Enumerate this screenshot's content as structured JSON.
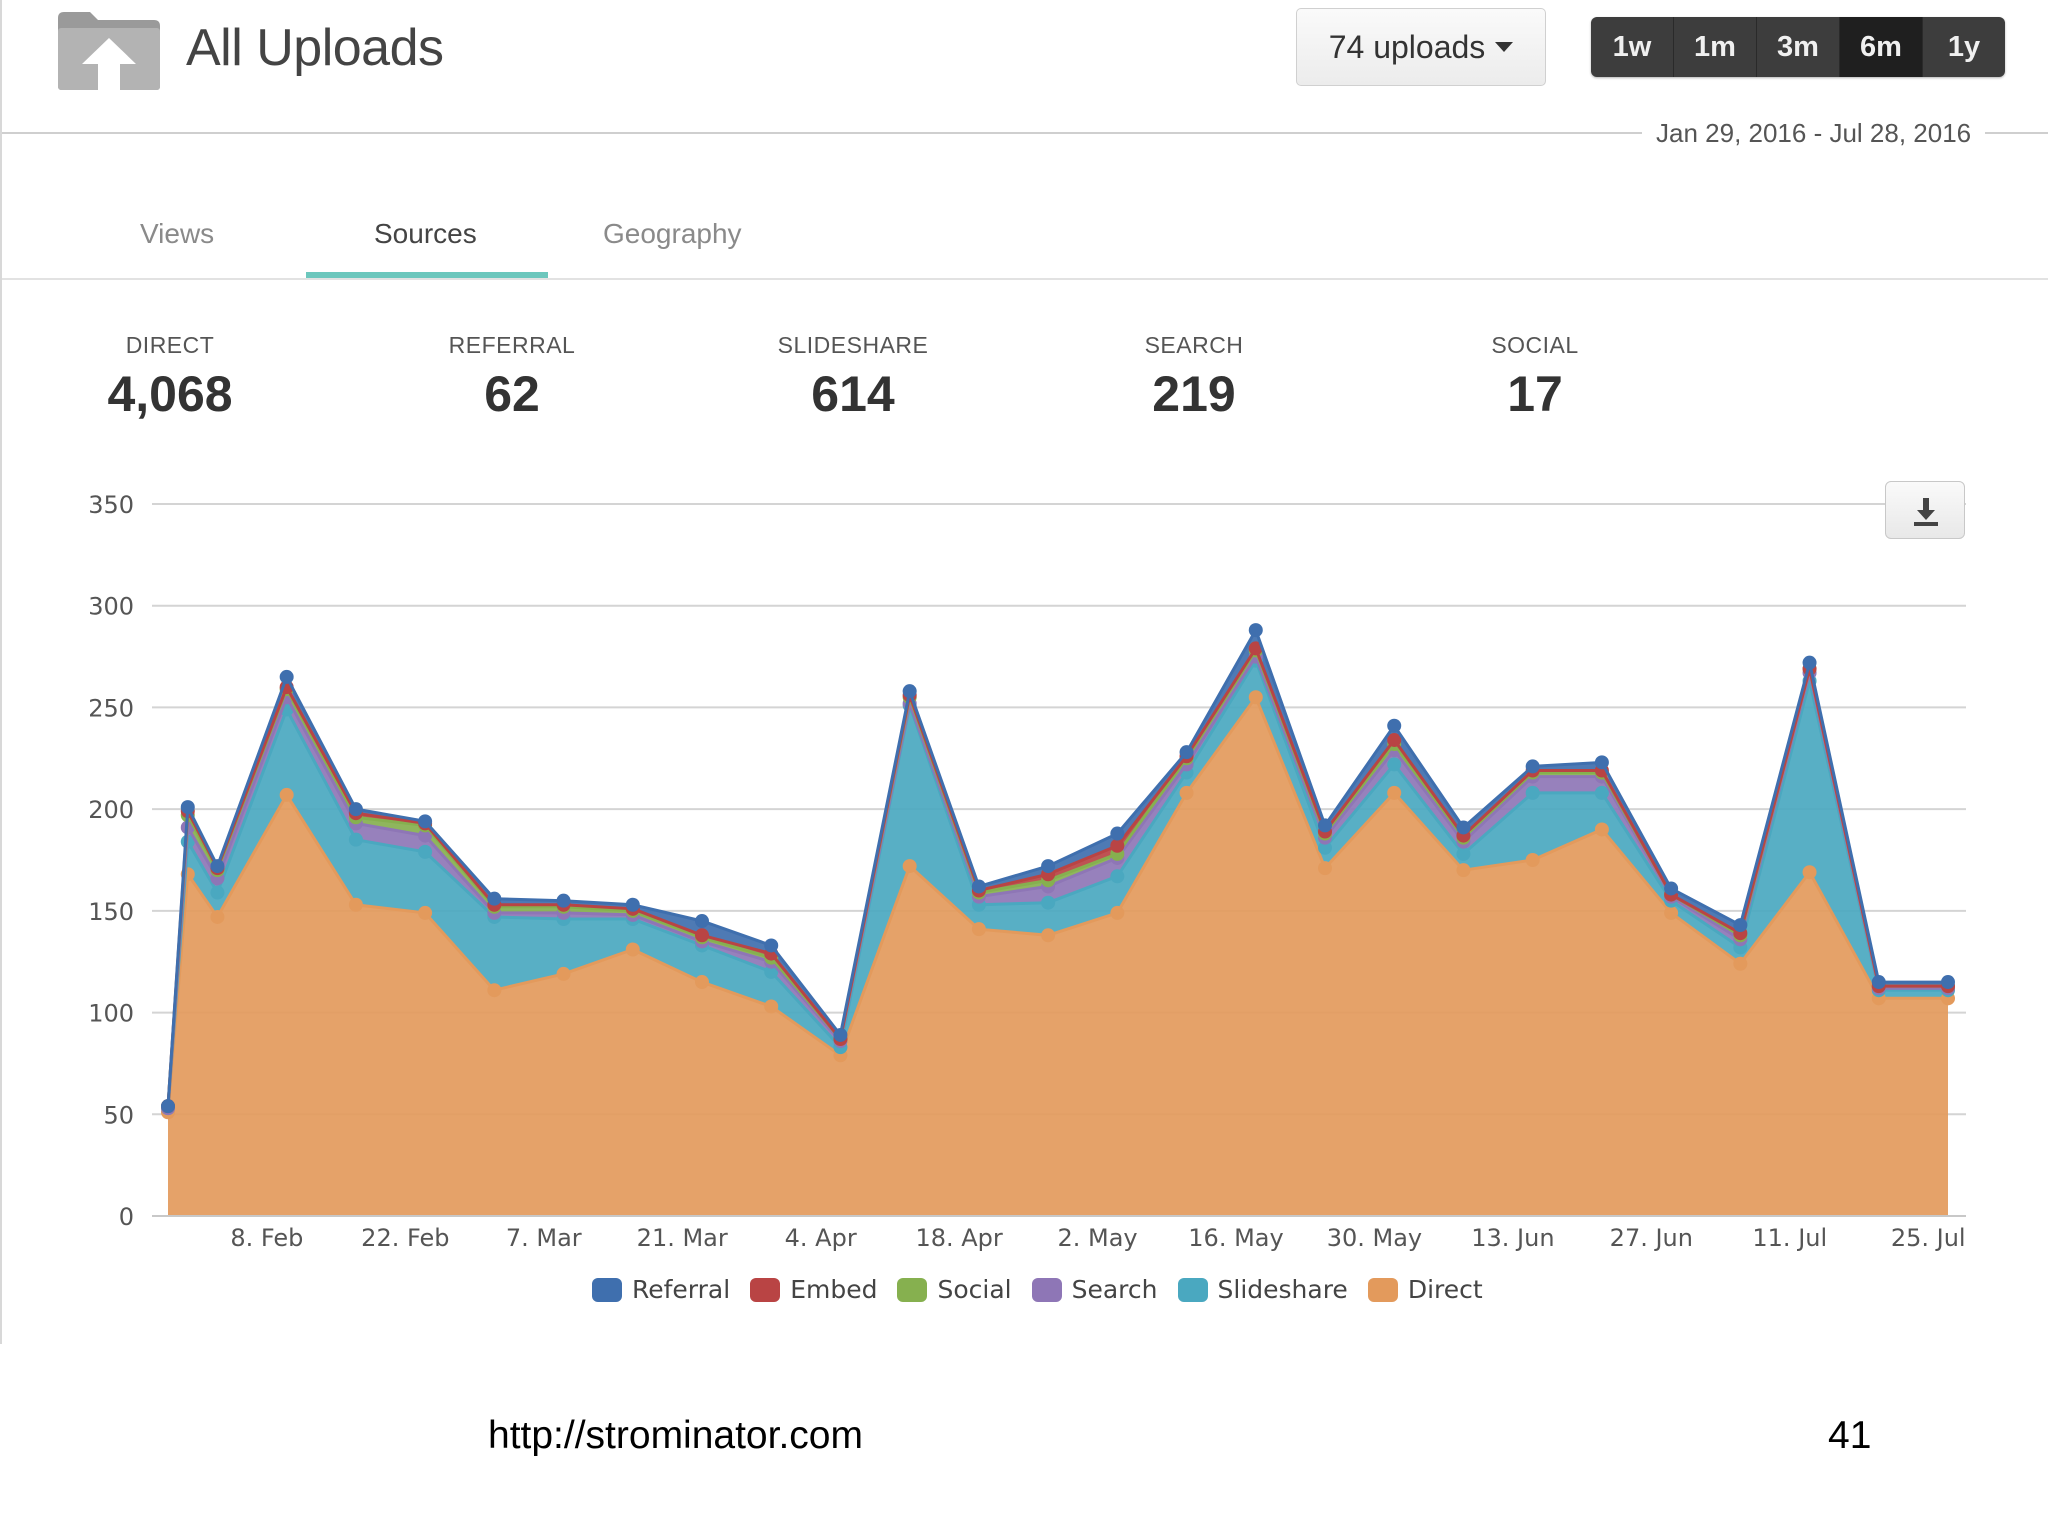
{
  "header": {
    "title": "All Uploads",
    "uploads_dropdown": "74 uploads",
    "range_buttons": [
      "1w",
      "1m",
      "3m",
      "6m",
      "1y"
    ],
    "active_range": "6m",
    "date_range": "Jan 29, 2016 - Jul 28, 2016",
    "folder_icon": "upload-folder-icon"
  },
  "tabs": [
    {
      "label": "Views"
    },
    {
      "label": "Sources"
    },
    {
      "label": "Geography"
    }
  ],
  "active_tab": "Sources",
  "stats": [
    {
      "label": "DIRECT",
      "value": "4,068"
    },
    {
      "label": "REFERRAL",
      "value": "62"
    },
    {
      "label": "SLIDESHARE",
      "value": "614"
    },
    {
      "label": "SEARCH",
      "value": "219"
    },
    {
      "label": "SOCIAL",
      "value": "17"
    }
  ],
  "download_icon": "download-icon",
  "chart_data": {
    "type": "area",
    "stacked": true,
    "title": "",
    "xlabel": "",
    "ylabel": "",
    "ylim": [
      0,
      350
    ],
    "yticks": [
      0,
      50,
      100,
      150,
      200,
      250,
      300,
      350
    ],
    "xticks": [
      "8. Feb",
      "22. Feb",
      "7. Mar",
      "21. Mar",
      "4. Apr",
      "18. Apr",
      "2. May",
      "16. May",
      "30. May",
      "13. Jun",
      "27. Jun",
      "11. Jul",
      "25. Jul"
    ],
    "x": [
      "2016-01-29",
      "2016-01-31",
      "2016-02-03",
      "2016-02-10",
      "2016-02-17",
      "2016-02-24",
      "2016-03-02",
      "2016-03-09",
      "2016-03-16",
      "2016-03-23",
      "2016-03-30",
      "2016-04-06",
      "2016-04-13",
      "2016-04-20",
      "2016-04-27",
      "2016-05-04",
      "2016-05-11",
      "2016-05-18",
      "2016-05-25",
      "2016-06-01",
      "2016-06-08",
      "2016-06-15",
      "2016-06-22",
      "2016-06-29",
      "2016-07-06",
      "2016-07-13",
      "2016-07-20",
      "2016-07-27"
    ],
    "grid": true,
    "legend_position": "bottom",
    "series": [
      {
        "name": "Direct",
        "color": "#e39a5c",
        "values": [
          51,
          168,
          147,
          207,
          153,
          149,
          111,
          119,
          131,
          115,
          103,
          79,
          172,
          141,
          138,
          149,
          208,
          255,
          171,
          208,
          170,
          175,
          190,
          149,
          124,
          169,
          107,
          107
        ]
      },
      {
        "name": "Slideshare",
        "color": "#4aa8c0",
        "values": [
          2,
          16,
          12,
          42,
          32,
          30,
          36,
          27,
          15,
          18,
          17,
          4,
          79,
          12,
          16,
          18,
          10,
          18,
          10,
          14,
          8,
          33,
          18,
          6,
          8,
          94,
          4,
          4
        ]
      },
      {
        "name": "Search",
        "color": "#8e76b6",
        "values": [
          0,
          7,
          7,
          6,
          8,
          8,
          2,
          3,
          2,
          2,
          5,
          3,
          1,
          4,
          8,
          9,
          4,
          2,
          5,
          7,
          6,
          8,
          8,
          2,
          4,
          4,
          1,
          1
        ]
      },
      {
        "name": "Social",
        "color": "#86b04f",
        "values": [
          1,
          6,
          4,
          4,
          3,
          5,
          3,
          3,
          2,
          2,
          2,
          1,
          3,
          2,
          3,
          2,
          3,
          3,
          2,
          3,
          2,
          2,
          2,
          1,
          2,
          2,
          1,
          1
        ]
      },
      {
        "name": "Embed",
        "color": "#b94444",
        "values": [
          0,
          2,
          1,
          1,
          2,
          1,
          1,
          1,
          1,
          1,
          2,
          0,
          1,
          1,
          3,
          4,
          1,
          1,
          1,
          2,
          1,
          1,
          1,
          0,
          1,
          0,
          0,
          0
        ]
      },
      {
        "name": "Referral",
        "color": "#3f6fae",
        "values": [
          0,
          2,
          1,
          5,
          2,
          1,
          3,
          2,
          2,
          7,
          4,
          2,
          2,
          2,
          4,
          6,
          2,
          9,
          3,
          7,
          4,
          2,
          4,
          3,
          4,
          3,
          2,
          2
        ]
      }
    ]
  },
  "legend_order": [
    "Referral",
    "Embed",
    "Social",
    "Search",
    "Slideshare",
    "Direct"
  ],
  "footer": {
    "url": "http://strominator.com",
    "page_number": "41"
  }
}
